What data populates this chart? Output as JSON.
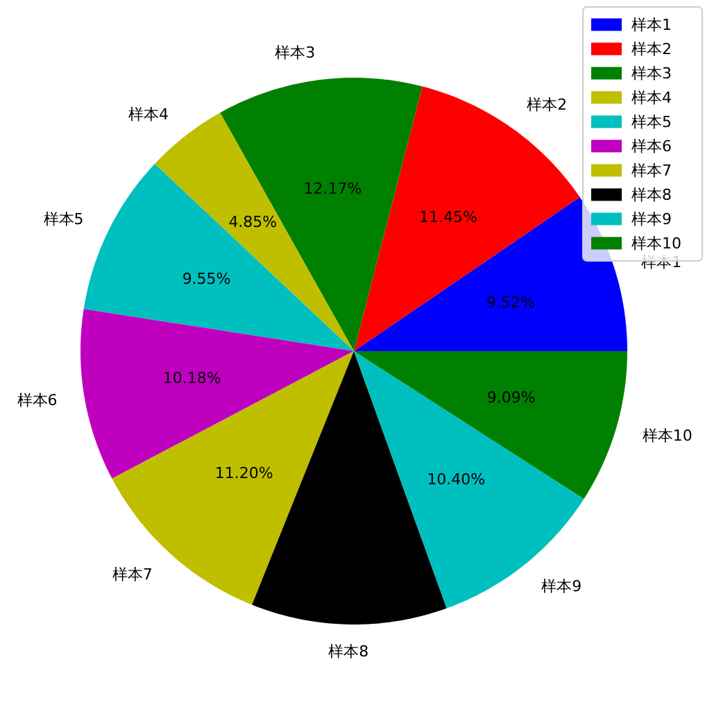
{
  "chart_data": {
    "type": "pie",
    "categories": [
      "样本1",
      "样本2",
      "样本3",
      "样本4",
      "样本5",
      "样本6",
      "样本7",
      "样本8",
      "样本9",
      "样本10"
    ],
    "values": [
      9.52,
      11.45,
      12.17,
      4.85,
      9.55,
      10.18,
      11.2,
      11.59,
      10.4,
      9.09
    ],
    "colors": [
      "#0000ff",
      "#ff0000",
      "#008000",
      "#bfbf00",
      "#00bfbf",
      "#bf00bf",
      "#bfbf00",
      "#000000",
      "#00bfbf",
      "#008000"
    ],
    "value_labels": [
      "9.52%",
      "11.45%",
      "12.17%",
      "4.85%",
      "9.55%",
      "10.18%",
      "11.20%",
      null,
      "10.40%",
      "9.09%"
    ],
    "legend": "top right"
  }
}
